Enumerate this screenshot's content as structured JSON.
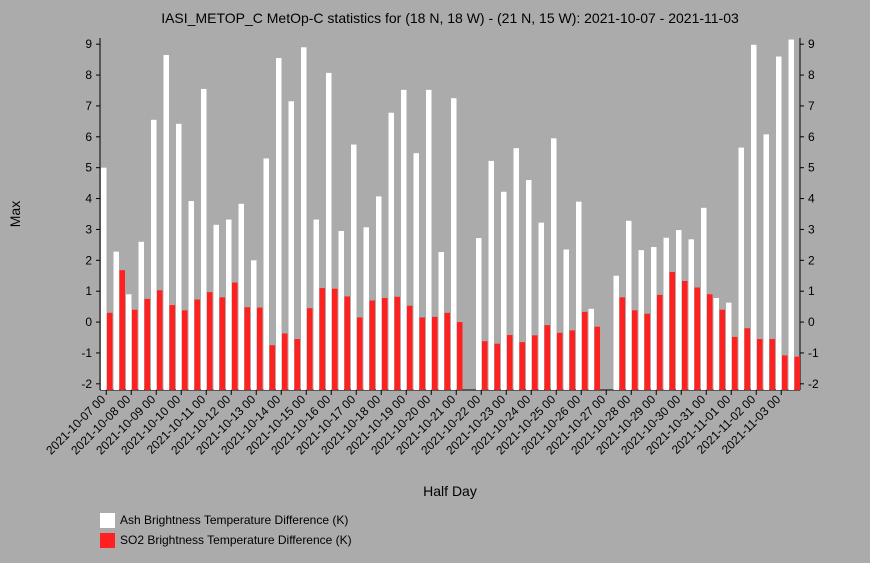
{
  "chart_data": {
    "type": "bar",
    "title": "IASI_METOP_C MetOp-C statistics for (18 N, 18 W) - (21 N, 15 W): 2021-10-07 - 2021-11-03",
    "xlabel": "Half Day",
    "ylabel": "Max",
    "ylim": [
      -2.2,
      9.2
    ],
    "yticks": [
      -2,
      -1,
      0,
      1,
      2,
      3,
      4,
      5,
      6,
      7,
      8,
      9
    ],
    "x_tick_labels": [
      "2021-10-07 00",
      "2021-10-08 00",
      "2021-10-09 00",
      "2021-10-10 00",
      "2021-10-11 00",
      "2021-10-12 00",
      "2021-10-13 00",
      "2021-10-14 00",
      "2021-10-15 00",
      "2021-10-16 00",
      "2021-10-17 00",
      "2021-10-18 00",
      "2021-10-19 00",
      "2021-10-20 00",
      "2021-10-21 00",
      "2021-10-22 00",
      "2021-10-23 00",
      "2021-10-24 00",
      "2021-10-25 00",
      "2021-10-26 00",
      "2021-10-27 00",
      "2021-10-28 00",
      "2021-10-29 00",
      "2021-10-30 00",
      "2021-10-31 00",
      "2021-11-01 00",
      "2021-11-02 00",
      "2021-11-03 00"
    ],
    "categories": [
      "2021-10-07 00",
      "2021-10-07 12",
      "2021-10-08 00",
      "2021-10-08 12",
      "2021-10-09 00",
      "2021-10-09 12",
      "2021-10-10 00",
      "2021-10-10 12",
      "2021-10-11 00",
      "2021-10-11 12",
      "2021-10-12 00",
      "2021-10-12 12",
      "2021-10-13 00",
      "2021-10-13 12",
      "2021-10-14 00",
      "2021-10-14 12",
      "2021-10-15 00",
      "2021-10-15 12",
      "2021-10-16 00",
      "2021-10-16 12",
      "2021-10-17 00",
      "2021-10-17 12",
      "2021-10-18 00",
      "2021-10-18 12",
      "2021-10-19 00",
      "2021-10-19 12",
      "2021-10-20 00",
      "2021-10-20 12",
      "2021-10-21 00",
      "2021-10-21 12",
      "2021-10-22 00",
      "2021-10-22 12",
      "2021-10-23 00",
      "2021-10-23 12",
      "2021-10-24 00",
      "2021-10-24 12",
      "2021-10-25 00",
      "2021-10-25 12",
      "2021-10-26 00",
      "2021-10-26 12",
      "2021-10-27 00",
      "2021-10-27 12",
      "2021-10-28 00",
      "2021-10-28 12",
      "2021-10-29 00",
      "2021-10-29 12",
      "2021-10-30 00",
      "2021-10-30 12",
      "2021-10-31 00",
      "2021-10-31 12",
      "2021-11-01 00",
      "2021-11-01 12",
      "2021-11-02 00",
      "2021-11-02 12",
      "2021-11-03 00",
      "2021-11-03 12"
    ],
    "series": [
      {
        "name": "Ash Brightness Temperature Difference (K)",
        "color": "#ffffff",
        "values": [
          5.0,
          2.28,
          0.9,
          2.6,
          6.55,
          8.65,
          6.42,
          3.92,
          7.55,
          3.15,
          3.32,
          3.83,
          2.0,
          5.3,
          8.55,
          7.15,
          8.9,
          3.32,
          8.07,
          2.95,
          5.75,
          3.07,
          4.07,
          6.78,
          7.52,
          5.47,
          7.52,
          2.27,
          7.25,
          null,
          2.72,
          5.22,
          4.22,
          5.63,
          4.6,
          3.22,
          5.95,
          2.35,
          3.9,
          0.43,
          null,
          1.5,
          3.28,
          2.33,
          2.43,
          2.73,
          2.98,
          2.68,
          3.7,
          0.78,
          0.63,
          5.65,
          8.98,
          6.08,
          8.6,
          9.15
        ]
      },
      {
        "name": "SO2 Brightness Temperature Difference (K)",
        "color": "#ff2020",
        "values": [
          0.3,
          1.68,
          0.4,
          0.75,
          1.03,
          0.55,
          0.38,
          0.73,
          0.97,
          0.8,
          1.28,
          0.48,
          0.47,
          -0.75,
          -0.37,
          -0.55,
          0.45,
          1.1,
          1.08,
          0.83,
          0.15,
          0.7,
          0.78,
          0.82,
          0.53,
          0.15,
          0.17,
          0.3,
          0.0,
          null,
          -0.62,
          -0.7,
          -0.42,
          -0.65,
          -0.43,
          -0.1,
          -0.35,
          -0.27,
          0.33,
          -0.15,
          null,
          0.8,
          0.38,
          0.27,
          0.88,
          1.62,
          1.33,
          1.12,
          0.9,
          0.4,
          -0.48,
          -0.2,
          -0.55,
          -0.55,
          -1.08,
          -1.12
        ]
      }
    ],
    "legend_position": "bottom-left",
    "grid": false
  }
}
